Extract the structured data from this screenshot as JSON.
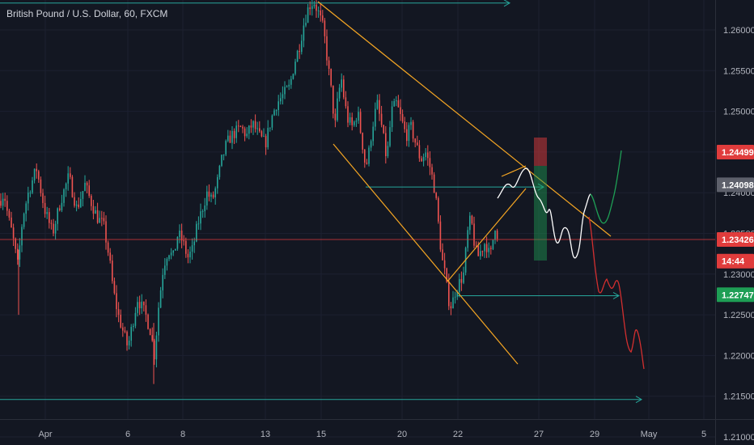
{
  "header": {
    "title": "British Pound / U.S. Dollar, 60, FXCM"
  },
  "chart_data": {
    "type": "candlestick",
    "symbol": "British Pound / U.S. Dollar",
    "interval": "60",
    "source": "FXCM",
    "y_ticks": [
      "1.26000",
      "1.25500",
      "1.25000",
      "1.24500",
      "1.24000",
      "1.23500",
      "1.23000",
      "1.22500",
      "1.22000",
      "1.21500",
      "1.21000"
    ],
    "y_range": [
      1.2045,
      1.2645
    ],
    "x_ticks": [
      "Apr",
      "6",
      "8",
      "13",
      "15",
      "20",
      "22",
      "27",
      "29",
      "May",
      "5"
    ],
    "price_tags": [
      {
        "label": "1.24499",
        "value": 1.24499,
        "color": "#e03c3c"
      },
      {
        "label": "1.24098",
        "value": 1.24098,
        "color": "#5d606b"
      },
      {
        "label": "1.23426",
        "value": 1.23426,
        "color": "#e03c3c"
      },
      {
        "label": "14:44",
        "value": 1.2316,
        "color": "#e03c3c"
      },
      {
        "label": "1.22747",
        "value": 1.22747,
        "color": "#1e9e55"
      }
    ],
    "price_path": [
      [
        0,
        1.239
      ],
      [
        5,
        1.24
      ],
      [
        10,
        1.237
      ],
      [
        15,
        1.235
      ],
      [
        22,
        1.231
      ],
      [
        28,
        1.237
      ],
      [
        35,
        1.24
      ],
      [
        45,
        1.243
      ],
      [
        55,
        1.238
      ],
      [
        65,
        1.235
      ],
      [
        75,
        1.239
      ],
      [
        85,
        1.242
      ],
      [
        95,
        1.238
      ],
      [
        105,
        1.241
      ],
      [
        112,
        1.239
      ],
      [
        120,
        1.237
      ],
      [
        128,
        1.236
      ],
      [
        135,
        1.232
      ],
      [
        140,
        1.228
      ],
      [
        146,
        1.225
      ],
      [
        152,
        1.223
      ],
      [
        158,
        1.221
      ],
      [
        164,
        1.224
      ],
      [
        170,
        1.227
      ],
      [
        175,
        1.226
      ],
      [
        180,
        1.225
      ],
      [
        186,
        1.223
      ],
      [
        191,
        1.22
      ],
      [
        196,
        1.226
      ],
      [
        202,
        1.231
      ],
      [
        208,
        1.233
      ],
      [
        214,
        1.232
      ],
      [
        220,
        1.235
      ],
      [
        226,
        1.234
      ],
      [
        232,
        1.232
      ],
      [
        238,
        1.233
      ],
      [
        244,
        1.236
      ],
      [
        250,
        1.238
      ],
      [
        256,
        1.24
      ],
      [
        262,
        1.239
      ],
      [
        268,
        1.241
      ],
      [
        274,
        1.244
      ],
      [
        280,
        1.246
      ],
      [
        286,
        1.247
      ],
      [
        292,
        1.2475
      ],
      [
        298,
        1.248
      ],
      [
        305,
        1.247
      ],
      [
        312,
        1.2485
      ],
      [
        320,
        1.247
      ],
      [
        328,
        1.246
      ],
      [
        335,
        1.249
      ],
      [
        342,
        1.251
      ],
      [
        350,
        1.252
      ],
      [
        358,
        1.253
      ],
      [
        364,
        1.256
      ],
      [
        370,
        1.258
      ],
      [
        376,
        1.261
      ],
      [
        382,
        1.263
      ],
      [
        388,
        1.2635
      ],
      [
        394,
        1.262
      ],
      [
        400,
        1.26
      ],
      [
        405,
        1.256
      ],
      [
        410,
        1.252
      ],
      [
        414,
        1.248
      ],
      [
        418,
        1.252
      ],
      [
        422,
        1.254
      ],
      [
        426,
        1.251
      ],
      [
        430,
        1.249
      ],
      [
        436,
        1.248
      ],
      [
        442,
        1.25
      ],
      [
        448,
        1.246
      ],
      [
        452,
        1.243
      ],
      [
        456,
        1.245
      ],
      [
        460,
        1.248
      ],
      [
        466,
        1.251
      ],
      [
        472,
        1.248
      ],
      [
        478,
        1.244
      ],
      [
        484,
        1.25
      ],
      [
        490,
        1.251
      ],
      [
        496,
        1.249
      ],
      [
        502,
        1.247
      ],
      [
        508,
        1.248
      ],
      [
        514,
        1.246
      ],
      [
        520,
        1.244
      ],
      [
        526,
        1.245
      ],
      [
        532,
        1.243
      ],
      [
        538,
        1.24
      ],
      [
        542,
        1.236
      ],
      [
        546,
        1.232
      ],
      [
        550,
        1.23
      ],
      [
        554,
        1.227
      ],
      [
        558,
        1.226
      ],
      [
        563,
        1.228
      ],
      [
        568,
        1.229
      ],
      [
        573,
        1.23
      ],
      [
        578,
        1.235
      ],
      [
        582,
        1.237
      ],
      [
        586,
        1.234
      ],
      [
        590,
        1.232
      ],
      [
        595,
        1.233
      ],
      [
        600,
        1.234
      ],
      [
        606,
        1.232
      ],
      [
        612,
        1.236
      ],
      [
        617,
        1.234
      ]
    ]
  },
  "drawings": {
    "horizontal_rays": [
      {
        "value": 1.2633,
        "color": "#26a69a"
      },
      {
        "value": 1.2407,
        "color": "#26a69a"
      },
      {
        "value": 1.22735,
        "color": "#26a69a"
      },
      {
        "value": 1.2146,
        "color": "#26a69a"
      },
      {
        "value": 1.23426,
        "color": "#e03c3c"
      }
    ],
    "trend_lines_color": "#f5a623",
    "projection_colors": {
      "white": "#ffffff",
      "green": "#1e9e55",
      "red": "#d32f2f"
    },
    "position_colors": {
      "stop": "#e03c3c",
      "target": "#1e9e55"
    }
  }
}
